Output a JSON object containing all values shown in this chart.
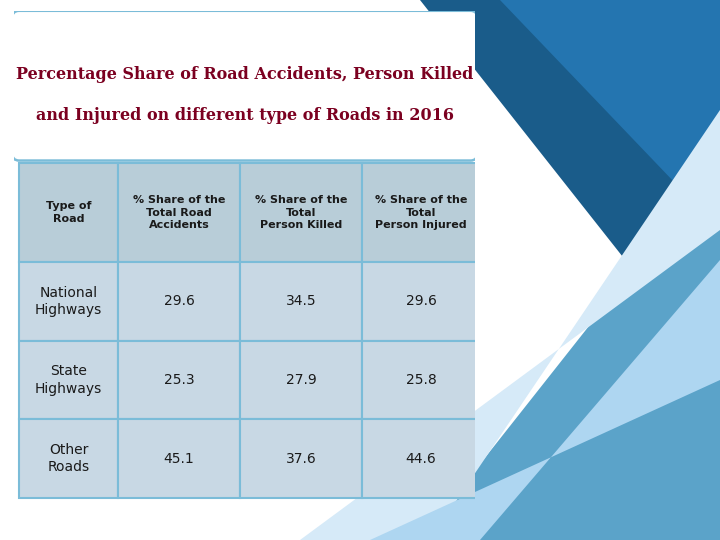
{
  "title_line1": "Percentage Share of Road Accidents, Person Killed",
  "title_line2": "and Injured on different type of Roads in 2016",
  "title_color": "#7B0020",
  "col_headers": [
    "Type of\nRoad",
    "% Share of the\nTotal Road\nAccidents",
    "% Share of the\nTotal\nPerson Killed",
    "% Share of the\nTotal\nPerson Injured"
  ],
  "rows": [
    [
      "National\nHighways",
      "29.6",
      "34.5",
      "29.6"
    ],
    [
      "State\nHighways",
      "25.3",
      "27.9",
      "25.8"
    ],
    [
      "Other\nRoads",
      "45.1",
      "37.6",
      "44.6"
    ]
  ],
  "header_bg": "#B8CDD8",
  "row_bg": "#C8D8E4",
  "border_color": "#7BBCD8",
  "text_color": "#1A1A1A",
  "header_text_color": "#1A1A1A",
  "bg_color": "#FFFFFF",
  "title_border_color": "#7BBCD8",
  "poly1_color": "#1A5C8A",
  "poly2_color": "#2475B0",
  "poly3_color": "#5BA3C9",
  "poly4_color": "#AED6F1",
  "poly5_color": "#D6EAF8",
  "figsize": [
    7.2,
    5.4
  ],
  "dpi": 100
}
